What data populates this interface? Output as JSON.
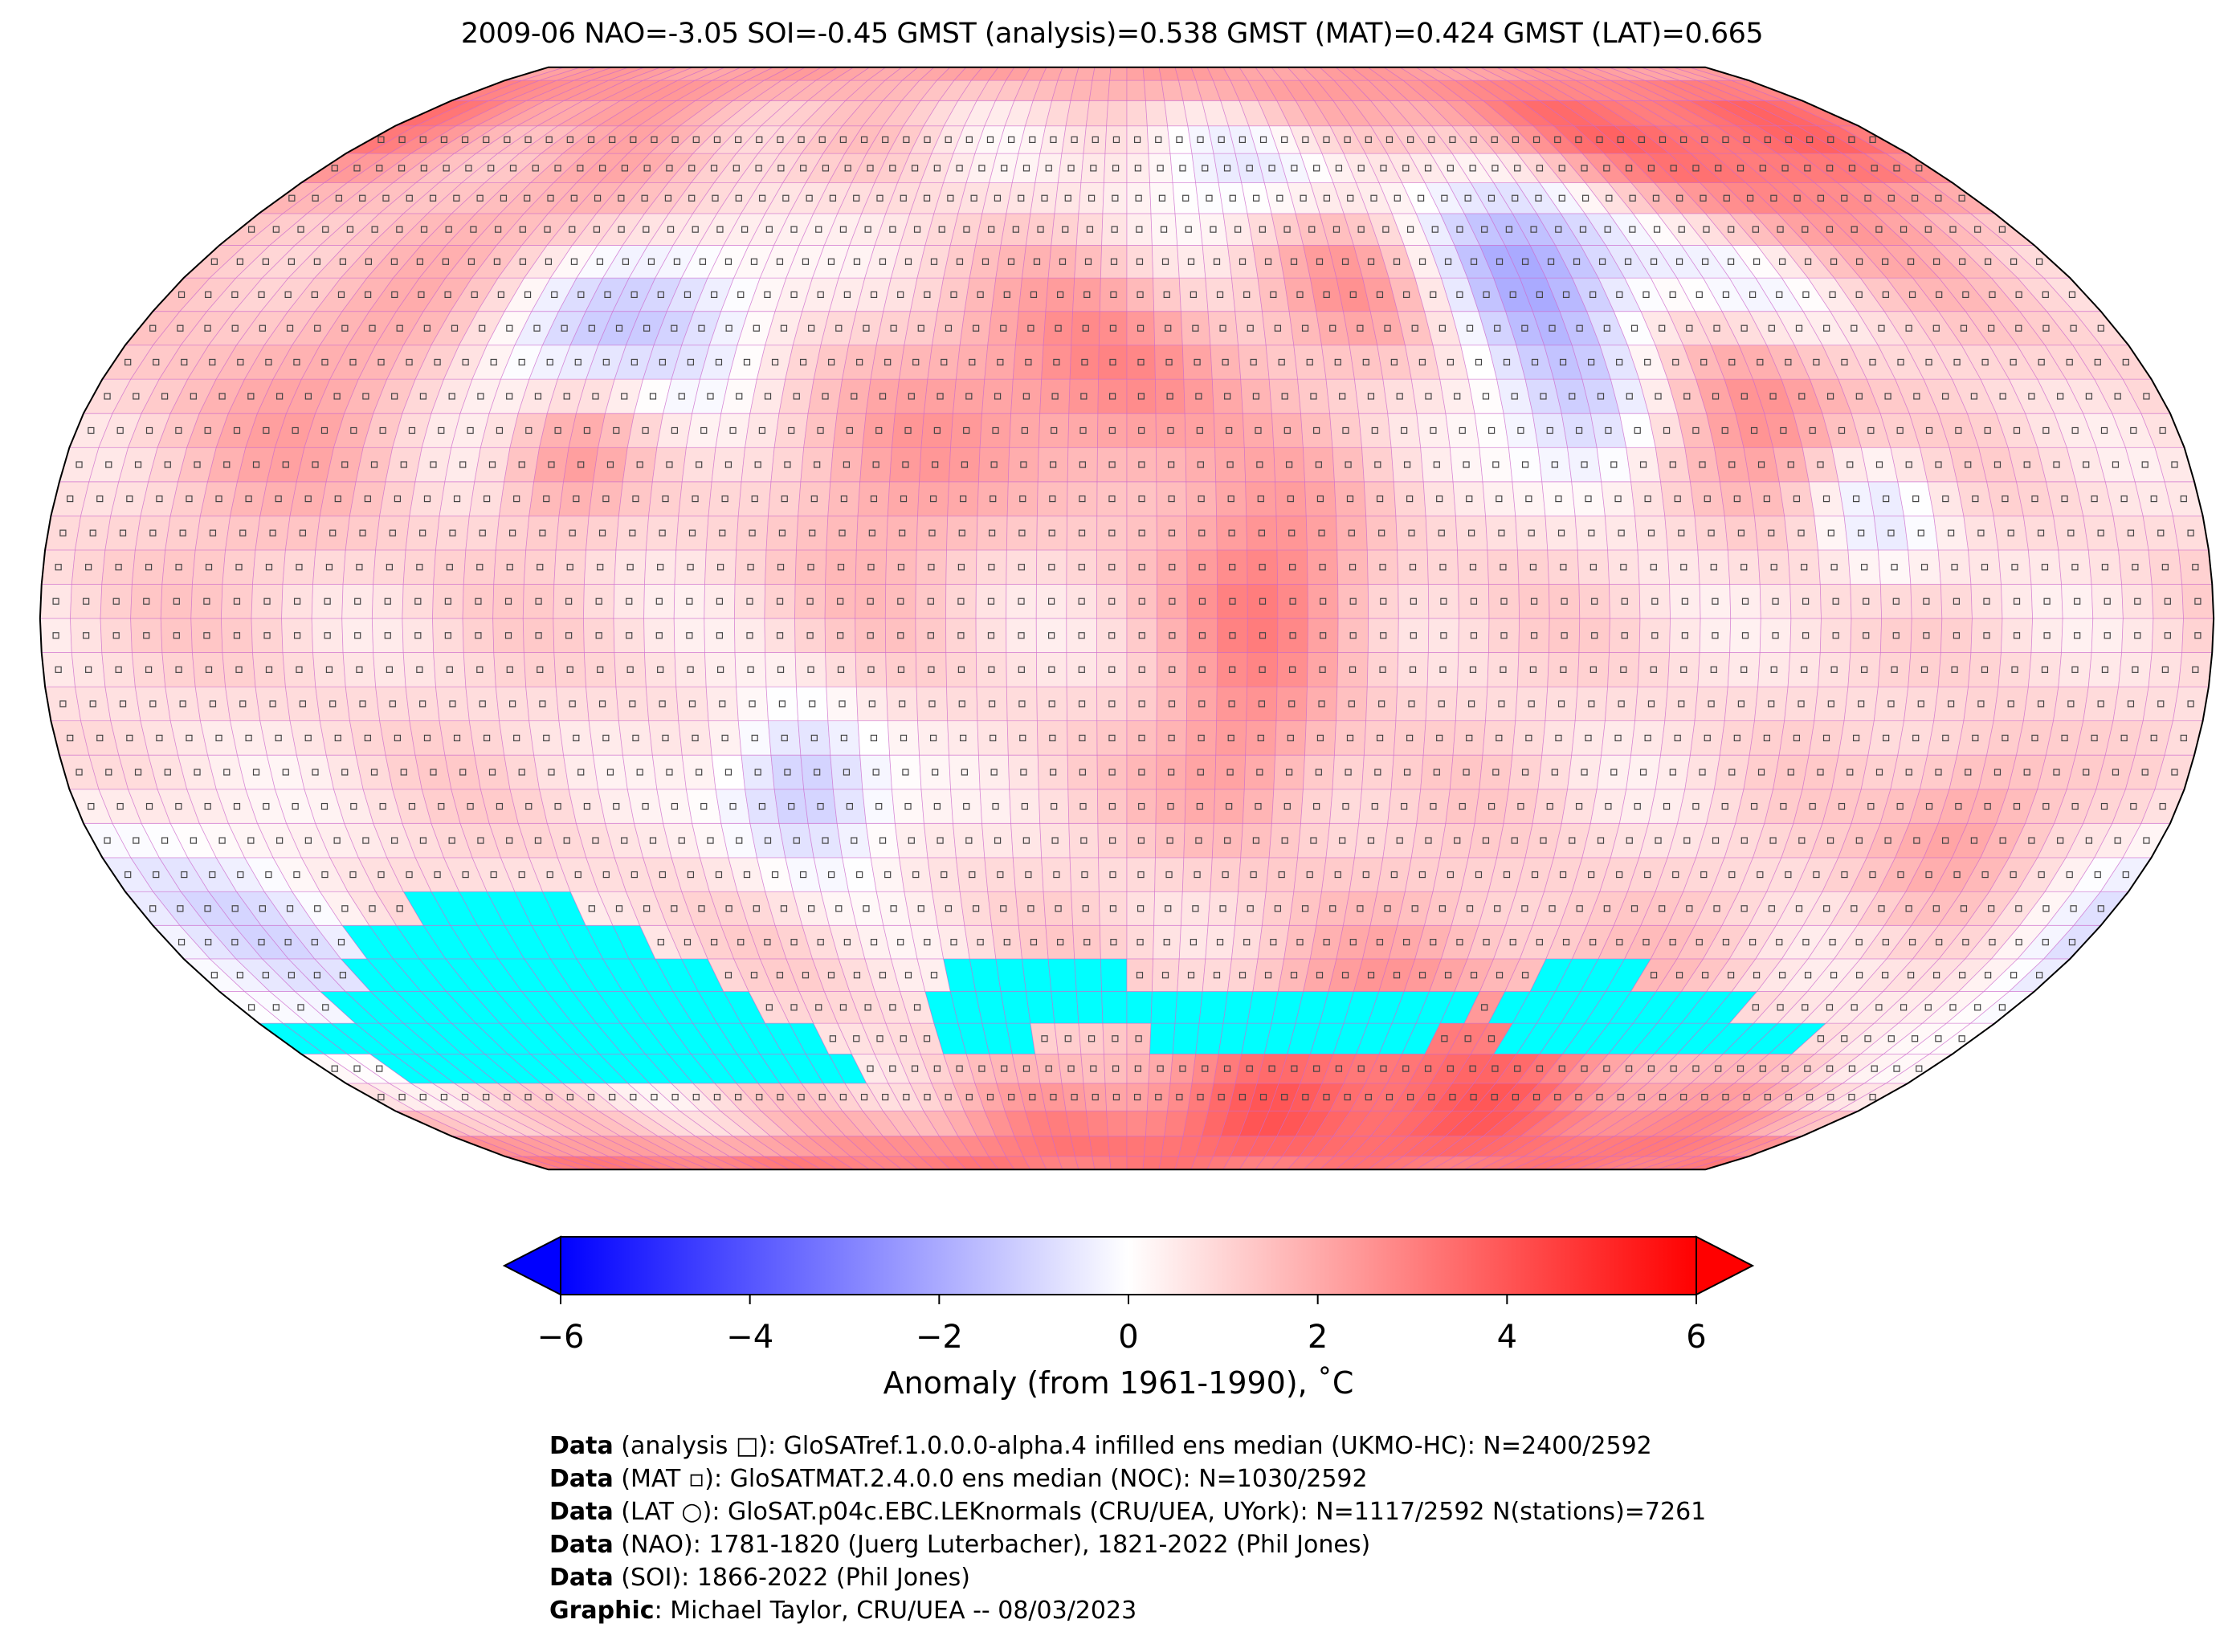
{
  "title": "2009-06 NAO=-3.05 SOI=-0.45 GMST (analysis)=0.538 GMST (MAT)=0.424 GMST (LAT)=0.665",
  "colors": {
    "missing": "#00ffff",
    "grid_line": "#cc66cc",
    "min": "#0000ff",
    "mid": "#ffffff",
    "max": "#ff0000"
  },
  "chart_data": {
    "type": "heatmap",
    "projection": "Robinson",
    "grid_resolution_deg": 5,
    "baseline_anomaly": 0.8,
    "anomaly_features": [
      {
        "lon": -100,
        "lat": 45,
        "amp": -2.2,
        "spread": 14
      },
      {
        "lon": -75,
        "lat": 40,
        "amp": -1.0,
        "spread": 10
      },
      {
        "lon": 25,
        "lat": 62,
        "amp": -1.8,
        "spread": 10
      },
      {
        "lon": 75,
        "lat": 55,
        "amp": -3.0,
        "spread": 11
      },
      {
        "lon": 115,
        "lat": 50,
        "amp": -2.0,
        "spread": 10
      },
      {
        "lon": 80,
        "lat": 30,
        "amp": -2.0,
        "spread": 9
      },
      {
        "lon": -55,
        "lat": -25,
        "amp": -2.4,
        "spread": 9
      },
      {
        "lon": -170,
        "lat": -45,
        "amp": -1.6,
        "spread": 14
      },
      {
        "lon": 125,
        "lat": 15,
        "amp": -1.5,
        "spread": 8
      },
      {
        "lon": -110,
        "lat": 60,
        "amp": 1.5,
        "spread": 12
      },
      {
        "lon": 45,
        "lat": 55,
        "amp": 2.5,
        "spread": 10
      },
      {
        "lon": 130,
        "lat": 70,
        "amp": 3.2,
        "spread": 14
      },
      {
        "lon": 110,
        "lat": 30,
        "amp": 2.5,
        "spread": 10
      },
      {
        "lon": 25,
        "lat": 5,
        "amp": 2.0,
        "spread": 12
      },
      {
        "lon": 20,
        "lat": -20,
        "amp": 1.5,
        "spread": 10
      },
      {
        "lon": 0,
        "lat": 35,
        "amp": 2.0,
        "spread": 12
      },
      {
        "lon": -40,
        "lat": 25,
        "amp": 1.3,
        "spread": 15
      },
      {
        "lon": -140,
        "lat": 35,
        "amp": 1.2,
        "spread": 18
      },
      {
        "lon": 60,
        "lat": -75,
        "amp": 3.0,
        "spread": 18
      },
      {
        "lon": 145,
        "lat": -30,
        "amp": 1.6,
        "spread": 9
      },
      {
        "lon": -95,
        "lat": 25,
        "amp": 1.8,
        "spread": 8
      }
    ],
    "missing_regions": [
      {
        "lat": [
          -45,
          -40
        ],
        "lon": [
          -130,
          -100
        ]
      },
      {
        "lat": [
          -50,
          -45
        ],
        "lon": [
          -145,
          -90
        ]
      },
      {
        "lat": [
          -55,
          -50
        ],
        "lon": [
          -150,
          -80
        ]
      },
      {
        "lat": [
          -55,
          -50
        ],
        "lon": [
          -35,
          0
        ]
      },
      {
        "lat": [
          -55,
          -50
        ],
        "lon": [
          80,
          100
        ]
      },
      {
        "lat": [
          -60,
          -55
        ],
        "lon": [
          -160,
          -75
        ]
      },
      {
        "lat": [
          -60,
          -55
        ],
        "lon": [
          -40,
          70
        ]
      },
      {
        "lat": [
          -60,
          -55
        ],
        "lon": [
          75,
          125
        ]
      },
      {
        "lat": [
          -65,
          -60
        ],
        "lon": [
          -180,
          -65
        ]
      },
      {
        "lat": [
          -65,
          -60
        ],
        "lon": [
          -40,
          -20
        ]
      },
      {
        "lat": [
          -65,
          -60
        ],
        "lon": [
          5,
          65
        ]
      },
      {
        "lat": [
          -65,
          -60
        ],
        "lon": [
          80,
          145
        ]
      },
      {
        "lat": [
          -70,
          -65
        ],
        "lon": [
          -165,
          -62
        ]
      }
    ],
    "colorbar": {
      "min": -6,
      "max": 6,
      "extend": "both",
      "ticks": [
        "−6",
        "−4",
        "−2",
        "0",
        "2",
        "4",
        "6"
      ],
      "tick_values": [
        -6,
        -4,
        -2,
        0,
        2,
        4,
        6
      ],
      "label": "Anomaly (from 1961-1990), ˚C"
    }
  },
  "footer": [
    {
      "bold": "Data",
      "text": " (analysis □): GloSATref.1.0.0.0-alpha.4 infilled ens median (UKMO-HC): N=2400/2592"
    },
    {
      "bold": "Data",
      "text": " (MAT ▫): GloSATMAT.2.4.0.0 ens median (NOC): N=1030/2592"
    },
    {
      "bold": "Data",
      "text": " (LAT ○): GloSAT.p04c.EBC.LEKnormals (CRU/UEA, UYork): N=1117/2592 N(stations)=7261"
    },
    {
      "bold": "Data",
      "text": " (NAO): 1781-1820 (Juerg Luterbacher), 1821-2022 (Phil Jones)"
    },
    {
      "bold": "Data",
      "text": " (SOI): 1866-2022 (Phil Jones)"
    },
    {
      "bold": "Graphic",
      "text": ": Michael Taylor, CRU/UEA -- 08/03/2023"
    }
  ]
}
